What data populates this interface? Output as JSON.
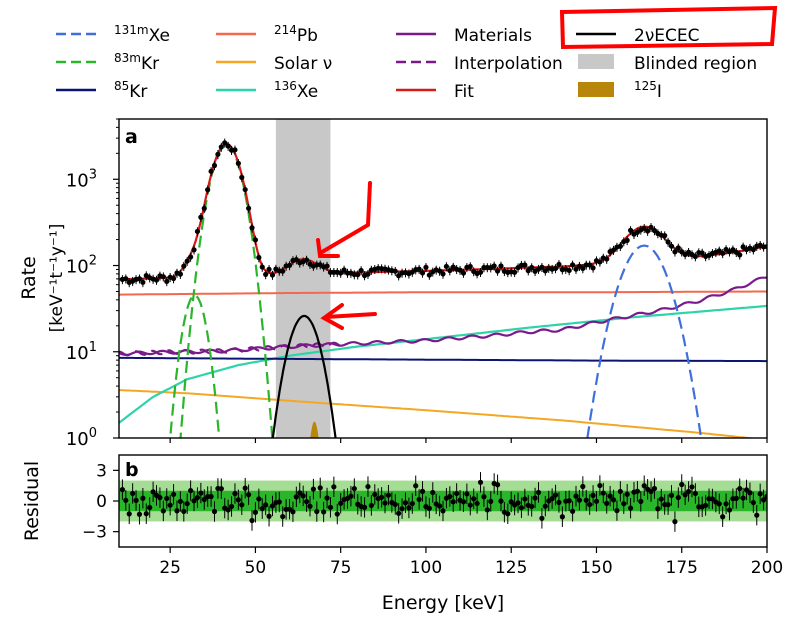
{
  "chart_data": [
    {
      "panel": "a",
      "type": "line",
      "yscale": "log",
      "xlim": [
        10,
        200
      ],
      "ylim": [
        1,
        5000
      ],
      "xlabel": "Energy [keV]",
      "ylabel_line1": "Rate",
      "ylabel_line2": "[keV⁻¹t⁻¹y⁻¹]",
      "yticks": [
        {
          "v": 1,
          "base": "10",
          "exp": "0"
        },
        {
          "v": 10,
          "base": "10",
          "exp": "1"
        },
        {
          "v": 100,
          "base": "10",
          "exp": "2"
        },
        {
          "v": 1000,
          "base": "10",
          "exp": "3"
        }
      ],
      "blinded_region": [
        56,
        72
      ],
      "legend": [
        {
          "key": "xe131m",
          "sup": "131m",
          "label": "Xe",
          "color": "#3f6fdc",
          "style": "dashed"
        },
        {
          "key": "kr83m",
          "sup": "83m",
          "label": "Kr",
          "color": "#2ab52a",
          "style": "dashed"
        },
        {
          "key": "kr85",
          "sup": "85",
          "label": "Kr",
          "color": "#0b1470",
          "style": "solid"
        },
        {
          "key": "pb214",
          "sup": "214",
          "label": "Pb",
          "color": "#f4684e",
          "style": "solid"
        },
        {
          "key": "solar",
          "sup": "",
          "label": "Solar ν",
          "color": "#f5a623",
          "style": "solid"
        },
        {
          "key": "xe136",
          "sup": "136",
          "label": "Xe",
          "color": "#2ed3aa",
          "style": "solid"
        },
        {
          "key": "materials",
          "sup": "",
          "label": "Materials",
          "color": "#7a1a8a",
          "style": "solid"
        },
        {
          "key": "interp",
          "sup": "",
          "label": "Interpolation",
          "color": "#7a1a8a",
          "style": "dashed"
        },
        {
          "key": "fit",
          "sup": "",
          "label": "Fit",
          "color": "#d7191c",
          "style": "solid"
        },
        {
          "key": "ecec",
          "sup": "",
          "label": "2νECEC",
          "color": "#000000",
          "style": "solid"
        },
        {
          "key": "blinded",
          "sup": "",
          "label": "Blinded region",
          "color": "#c8c8c8",
          "style": "patch"
        },
        {
          "key": "i125",
          "sup": "125",
          "label": "I",
          "color": "#b8860b",
          "style": "patch"
        }
      ],
      "components": {
        "pb214": {
          "x": [
            10,
            60,
            100,
            150,
            200
          ],
          "y": [
            46,
            48,
            49,
            49,
            50
          ]
        },
        "kr85": {
          "x": [
            10,
            50,
            100,
            150,
            200
          ],
          "y": [
            8.5,
            8.3,
            8.1,
            7.9,
            7.8
          ]
        },
        "solar": {
          "x": [
            10,
            30,
            60,
            100,
            140,
            180,
            200
          ],
          "y": [
            3.6,
            3.3,
            2.7,
            2.1,
            1.6,
            1.15,
            0.95
          ]
        },
        "xe136": {
          "x": [
            10,
            20,
            30,
            45,
            60,
            80,
            100,
            130,
            160,
            200
          ],
          "y": [
            1.5,
            3.0,
            4.8,
            7.0,
            9.0,
            11.5,
            14,
            19,
            25,
            34
          ]
        },
        "materials": {
          "x": [
            10,
            20,
            30,
            40,
            50,
            60,
            70,
            80,
            90,
            100,
            110,
            120,
            130,
            140,
            150,
            160,
            170,
            180,
            190,
            200
          ],
          "y": [
            9.5,
            9.8,
            10.0,
            10.2,
            10.8,
            11.5,
            12,
            12.5,
            13,
            13.5,
            14.5,
            15.5,
            17,
            18,
            22,
            26,
            31,
            39,
            52,
            75
          ]
        },
        "xe131m": {
          "mean": 164,
          "sigma": 5.2,
          "amp": 170
        },
        "kr83m": [
          {
            "mean": 41.5,
            "sigma": 3.4,
            "amp": 2500
          },
          {
            "mean": 32.2,
            "sigma": 2.6,
            "amp": 45
          }
        ],
        "ecec": {
          "mean": 64.3,
          "sigma": 3.6,
          "amp": 26
        },
        "i125": {
          "mean": 67.3,
          "sigma": 1.3,
          "amp": 1.55
        }
      },
      "data_points": "pseudo-random scatter around Fit (~100 points, ~10% errors)"
    },
    {
      "panel": "b",
      "type": "scatter",
      "ylabel": "Residual",
      "xlim": [
        10,
        200
      ],
      "ylim": [
        -4.5,
        4.5
      ],
      "yticks": [
        -3,
        0,
        3
      ],
      "xticks": [
        25,
        50,
        75,
        100,
        125,
        150,
        175,
        200
      ],
      "bands": {
        "one_sigma": [
          -1,
          1
        ],
        "two_sigma": [
          -2,
          2
        ],
        "one_sigma_color": "#2ab52a",
        "two_sigma_color": "#a5dd95"
      }
    }
  ],
  "labels": {
    "panel_a": "a",
    "panel_b": "b"
  },
  "annotations": {
    "highlight_box_color": "#ff0000",
    "arrow_color": "#ff0000"
  }
}
